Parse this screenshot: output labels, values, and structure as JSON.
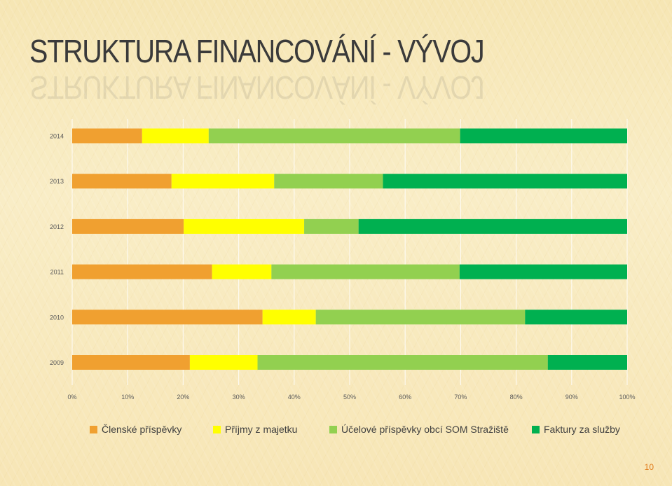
{
  "slide": {
    "title": "STRUKTURA FINANCOVÁNÍ - VÝVOJ",
    "page_number": "10"
  },
  "chart_data": {
    "type": "bar",
    "orientation": "horizontal",
    "stacked": "percent",
    "categories": [
      "2014",
      "2013",
      "2012",
      "2011",
      "2010",
      "2009"
    ],
    "x_ticks": [
      "0%",
      "10%",
      "20%",
      "30%",
      "40%",
      "50%",
      "60%",
      "70%",
      "80%",
      "90%",
      "100%"
    ],
    "xlim": [
      0,
      100
    ],
    "grid": true,
    "legend_position": "bottom",
    "series": [
      {
        "name": "Členské příspěvky",
        "color": "#f0a030",
        "values": [
          12.6,
          17.9,
          20.1,
          25.2,
          34.3,
          21.2
        ]
      },
      {
        "name": "Příjmy z majetku",
        "color": "#ffff00",
        "values": [
          12.0,
          18.5,
          21.7,
          10.7,
          9.6,
          12.2
        ]
      },
      {
        "name": "Účelové příspěvky obcí SOM Stražiště",
        "color": "#92d050",
        "values": [
          45.3,
          19.6,
          9.8,
          33.9,
          37.7,
          52.3
        ]
      },
      {
        "name": "Faktury za služby",
        "color": "#00b050",
        "values": [
          30.1,
          44.0,
          48.4,
          30.2,
          18.4,
          14.3
        ]
      }
    ]
  }
}
